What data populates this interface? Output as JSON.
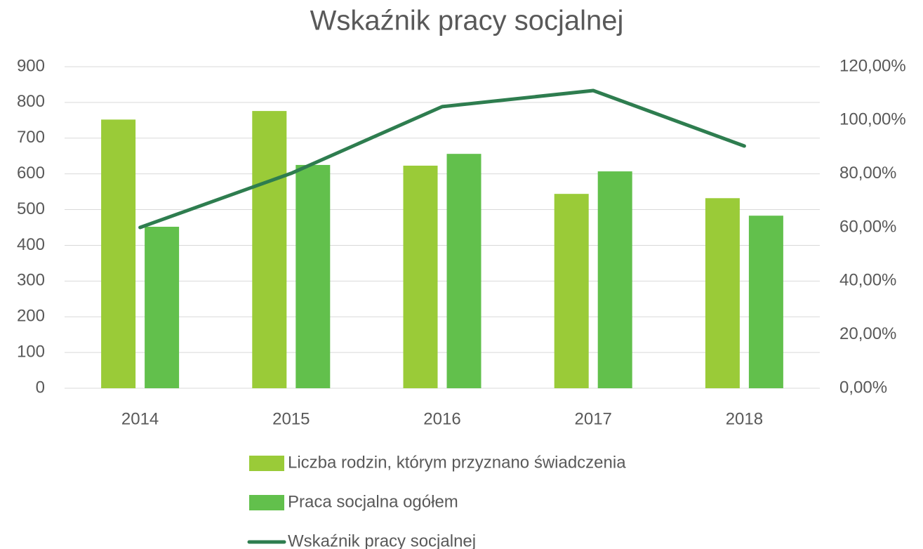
{
  "chart_data": {
    "type": "bar",
    "title": "Wskaźnik pracy socjalnej",
    "categories": [
      "2014",
      "2015",
      "2016",
      "2017",
      "2018"
    ],
    "series": [
      {
        "name": "Liczba rodzin, którym przyznano świadczenia",
        "color": "#9acb38",
        "values": [
          752,
          776,
          623,
          544,
          532
        ]
      },
      {
        "name": "Praca socjalna ogółem",
        "color": "#62c04c",
        "values": [
          452,
          625,
          656,
          607,
          483
        ]
      },
      {
        "name": "Wskaźnik pracy socjalnej",
        "color": "#2e7d4f",
        "type": "line",
        "axis": "y2",
        "values": [
          60.0,
          80.2,
          105.1,
          111.1,
          90.4
        ]
      }
    ],
    "ylim": [
      0,
      900
    ],
    "yticks": [
      0,
      100,
      200,
      300,
      400,
      500,
      600,
      700,
      800,
      900
    ],
    "y2lim": [
      0,
      120
    ],
    "y2ticks": [
      {
        "value": 0,
        "label": "0,00%"
      },
      {
        "value": 20,
        "label": "20,00%"
      },
      {
        "value": 40,
        "label": "40,00%"
      },
      {
        "value": 60,
        "label": "60,00%"
      },
      {
        "value": 80,
        "label": "80,00%"
      },
      {
        "value": 100,
        "label": "100,00%"
      },
      {
        "value": 120,
        "label": "120,00%"
      }
    ],
    "grid": true,
    "legend": "bottom"
  }
}
